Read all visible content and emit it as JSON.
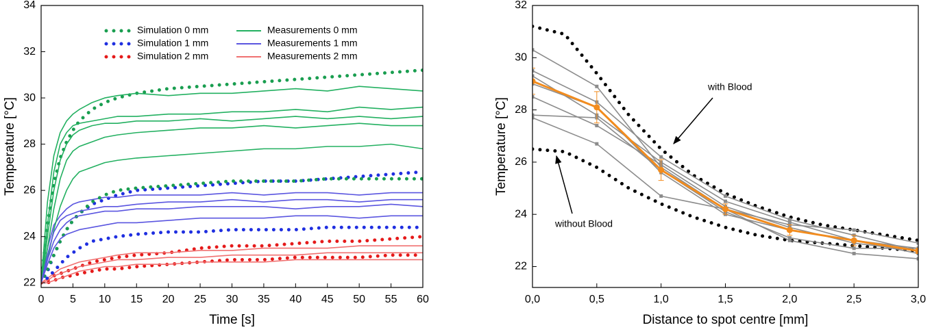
{
  "chart_data": [
    {
      "type": "line",
      "x_label": "Time [s]",
      "y_label": "Temperature [°C]",
      "xlim": [
        0,
        60
      ],
      "xticks": [
        0,
        5,
        10,
        15,
        20,
        25,
        30,
        35,
        40,
        45,
        50,
        55,
        60
      ],
      "ylim": [
        21.8,
        34
      ],
      "yticks": [
        22,
        24,
        26,
        28,
        30,
        32,
        34
      ],
      "x": [
        0,
        1,
        2,
        3,
        4,
        5,
        6,
        8,
        10,
        12,
        15,
        20,
        25,
        30,
        35,
        40,
        45,
        50,
        55,
        60
      ],
      "series": [
        {
          "name": "Simulation 0 mm",
          "color": "#1a9e50",
          "line": "dotted",
          "values": [
            22,
            24.5,
            26.3,
            27.4,
            28.1,
            28.6,
            29.0,
            29.5,
            29.8,
            30.0,
            30.2,
            30.4,
            30.5,
            30.6,
            30.7,
            30.8,
            30.9,
            31.0,
            31.1,
            31.2
          ]
        },
        {
          "name": "Simulation 1 mm",
          "color": "#1f2fe0",
          "line": "dotted",
          "values": [
            22,
            22.5,
            23.2,
            23.8,
            24.3,
            24.7,
            25.0,
            25.4,
            25.6,
            25.8,
            26.0,
            26.1,
            26.2,
            26.3,
            26.4,
            26.4,
            26.5,
            26.6,
            26.7,
            26.8
          ]
        },
        {
          "name": "Simulation 2 mm",
          "color": "#e51a1a",
          "line": "dotted",
          "values": [
            22,
            22.1,
            22.3,
            22.4,
            22.5,
            22.6,
            22.7,
            22.9,
            23.0,
            23.1,
            23.2,
            23.3,
            23.5,
            23.6,
            23.6,
            23.7,
            23.8,
            23.8,
            23.9,
            24.0
          ]
        },
        {
          "name": "Measurements 0 mm",
          "color": "#22b060",
          "line": "solid",
          "values": [
            22,
            25.5,
            27.5,
            28.5,
            29.0,
            29.3,
            29.5,
            29.8,
            30.0,
            30.1,
            30.2,
            30.1,
            30.2,
            30.2,
            30.3,
            30.4,
            30.3,
            30.5,
            30.4,
            30.3
          ]
        },
        {
          "name": "Measurements 1 mm",
          "color": "#5a55e0",
          "line": "solid",
          "values": [
            22,
            23.5,
            24.5,
            24.9,
            25.2,
            25.4,
            25.5,
            25.6,
            25.7,
            25.7,
            25.8,
            25.8,
            25.8,
            25.9,
            25.8,
            25.9,
            25.9,
            25.8,
            25.9,
            25.9
          ]
        },
        {
          "name": "Measurements 2 mm",
          "color": "#f07070",
          "line": "solid",
          "values": [
            22,
            22.2,
            22.4,
            22.6,
            22.7,
            22.8,
            22.9,
            23.0,
            23.1,
            23.2,
            23.3,
            23.3,
            23.4,
            23.4,
            23.5,
            23.5,
            23.5,
            23.6,
            23.6,
            23.6
          ]
        },
        {
          "color": "#1a9e50",
          "line": "dotted",
          "values": [
            22,
            22.6,
            23.2,
            23.8,
            24.3,
            24.7,
            25.0,
            25.5,
            25.8,
            26.0,
            26.1,
            26.2,
            26.3,
            26.4,
            26.4,
            26.4,
            26.5,
            26.5,
            26.5,
            26.5
          ]
        },
        {
          "color": "#1f2fe0",
          "line": "dotted",
          "values": [
            22,
            22.2,
            22.5,
            22.8,
            23.1,
            23.3,
            23.5,
            23.8,
            23.9,
            24.0,
            24.1,
            24.2,
            24.2,
            24.3,
            24.3,
            24.3,
            24.4,
            24.4,
            24.4,
            24.4
          ]
        },
        {
          "color": "#e51a1a",
          "line": "dotted",
          "values": [
            22,
            22.0,
            22.1,
            22.2,
            22.3,
            22.3,
            22.4,
            22.5,
            22.6,
            22.6,
            22.7,
            22.8,
            22.9,
            23.0,
            23.0,
            23.1,
            23.1,
            23.1,
            23.2,
            23.2
          ]
        },
        {
          "color": "#22b060",
          "line": "solid",
          "values": [
            22,
            24.5,
            26.8,
            28.0,
            28.5,
            28.8,
            28.9,
            29.0,
            29.1,
            29.2,
            29.2,
            29.3,
            29.3,
            29.4,
            29.4,
            29.5,
            29.4,
            29.6,
            29.5,
            29.6
          ]
        },
        {
          "color": "#22b060",
          "line": "solid",
          "values": [
            22,
            24,
            26,
            27.3,
            28.0,
            28.4,
            28.6,
            28.8,
            28.9,
            28.9,
            29.0,
            29.0,
            29.1,
            29.0,
            29.1,
            29.2,
            29.1,
            29.2,
            29.1,
            29.2
          ]
        },
        {
          "color": "#22b060",
          "line": "solid",
          "values": [
            22,
            23.5,
            25.2,
            26.5,
            27.3,
            27.7,
            27.9,
            28.1,
            28.3,
            28.4,
            28.5,
            28.6,
            28.7,
            28.7,
            28.8,
            28.7,
            28.8,
            28.9,
            28.8,
            28.8
          ]
        },
        {
          "color": "#22b060",
          "line": "solid",
          "values": [
            22,
            23,
            24.3,
            25.3,
            26.0,
            26.5,
            26.8,
            27.0,
            27.2,
            27.3,
            27.4,
            27.5,
            27.6,
            27.7,
            27.8,
            27.8,
            27.9,
            27.9,
            28.0,
            27.8
          ]
        },
        {
          "color": "#5a55e0",
          "line": "solid",
          "values": [
            22,
            23.2,
            24.2,
            24.7,
            24.9,
            25.0,
            25.1,
            25.2,
            25.3,
            25.3,
            25.4,
            25.5,
            25.5,
            25.6,
            25.5,
            25.6,
            25.6,
            25.5,
            25.6,
            25.6
          ]
        },
        {
          "color": "#5a55e0",
          "line": "solid",
          "values": [
            22,
            23,
            23.8,
            24.3,
            24.6,
            24.8,
            24.9,
            25.0,
            25.1,
            25.1,
            25.2,
            25.2,
            25.3,
            25.3,
            25.3,
            25.2,
            25.3,
            25.3,
            25.4,
            25.3
          ]
        },
        {
          "color": "#5a55e0",
          "line": "solid",
          "values": [
            22,
            22.8,
            23.5,
            23.9,
            24.1,
            24.2,
            24.3,
            24.4,
            24.5,
            24.6,
            24.6,
            24.7,
            24.8,
            24.8,
            24.8,
            24.9,
            24.9,
            24.8,
            24.9,
            24.9
          ]
        },
        {
          "color": "#f07070",
          "line": "solid",
          "values": [
            22,
            22.1,
            22.3,
            22.4,
            22.5,
            22.6,
            22.7,
            22.8,
            22.9,
            23.0,
            23.0,
            23.1,
            23.1,
            23.2,
            23.2,
            23.2,
            23.3,
            23.3,
            23.3,
            23.3
          ]
        },
        {
          "color": "#f07070",
          "line": "solid",
          "values": [
            22,
            22.0,
            22.1,
            22.2,
            22.3,
            22.4,
            22.5,
            22.6,
            22.7,
            22.7,
            22.8,
            22.8,
            22.9,
            22.9,
            22.9,
            23.0,
            23.0,
            23.0,
            23.0,
            23.0
          ]
        }
      ]
    },
    {
      "type": "line",
      "x_label": "Distance to spot centre [mm]",
      "y_label": "Temperature [°C]",
      "xlim": [
        0,
        3
      ],
      "xticks": [
        {
          "value": 0,
          "label": "0,0"
        },
        {
          "value": 0.5,
          "label": "0,5"
        },
        {
          "value": 1,
          "label": "1,0"
        },
        {
          "value": 1.5,
          "label": "1,5"
        },
        {
          "value": 2,
          "label": "2,0"
        },
        {
          "value": 2.5,
          "label": "2,5"
        },
        {
          "value": 3,
          "label": "3,0"
        }
      ],
      "ylim": [
        21.2,
        32
      ],
      "yticks": [
        22,
        24,
        26,
        28,
        30,
        32
      ],
      "x": [
        0,
        0.5,
        1,
        1.5,
        2,
        2.5,
        3
      ],
      "annotations": [
        "with Blood",
        "without Blood"
      ],
      "series": [
        {
          "color": "#000000",
          "line": "dotted",
          "x": [
            0,
            0.25,
            0.5,
            0.75,
            1,
            1.25,
            1.5,
            1.75,
            2,
            2.25,
            2.5,
            2.75,
            3
          ],
          "values": [
            31.2,
            30.9,
            29.4,
            27.8,
            26.5,
            25.5,
            24.8,
            24.3,
            23.9,
            23.6,
            23.4,
            23.2,
            23.0
          ]
        },
        {
          "color": "#000000",
          "line": "dotted",
          "x": [
            0,
            0.25,
            0.5,
            0.75,
            1,
            1.25,
            1.5,
            1.75,
            2,
            2.25,
            2.5,
            2.75,
            3
          ],
          "values": [
            26.5,
            26.4,
            25.8,
            25.0,
            24.4,
            23.9,
            23.5,
            23.2,
            23.0,
            22.9,
            22.8,
            22.7,
            22.6
          ]
        },
        {
          "color": "#8c8c8c",
          "line": "solid",
          "marker": "square",
          "values": [
            30.3,
            28.9,
            25.8,
            24.2,
            23.6,
            23.4,
            22.9
          ]
        },
        {
          "color": "#8c8c8c",
          "line": "solid",
          "marker": "square",
          "values": [
            29.5,
            28.3,
            26.2,
            24.7,
            23.8,
            23.2,
            22.6
          ]
        },
        {
          "color": "#8c8c8c",
          "line": "solid",
          "marker": "square",
          "values": [
            29.3,
            27.8,
            26.0,
            24.5,
            23.7,
            23.0,
            22.7
          ]
        },
        {
          "color": "#8c8c8c",
          "line": "solid",
          "marker": "square",
          "values": [
            29.0,
            28.1,
            25.6,
            24.0,
            23.4,
            23.0,
            22.5
          ]
        },
        {
          "color": "#8c8c8c",
          "line": "solid",
          "marker": "square",
          "values": [
            28.5,
            27.4,
            25.9,
            24.3,
            23.5,
            22.9,
            22.6
          ]
        },
        {
          "color": "#8c8c8c",
          "line": "solid",
          "marker": "square",
          "values": [
            27.8,
            27.7,
            25.7,
            24.1,
            23.1,
            22.7,
            22.7
          ]
        },
        {
          "color": "#8c8c8c",
          "line": "solid",
          "marker": "square",
          "values": [
            27.7,
            26.7,
            24.7,
            24.2,
            23.0,
            22.5,
            22.3
          ]
        },
        {
          "color": "#f28c1e",
          "line": "solid",
          "marker": "circle",
          "values": [
            29.1,
            28.1,
            25.7,
            24.2,
            23.4,
            23.0,
            22.6
          ],
          "errors": [
            0.5,
            0.6,
            0.4,
            0.2,
            0.2,
            0.2,
            0.1
          ]
        }
      ]
    }
  ]
}
